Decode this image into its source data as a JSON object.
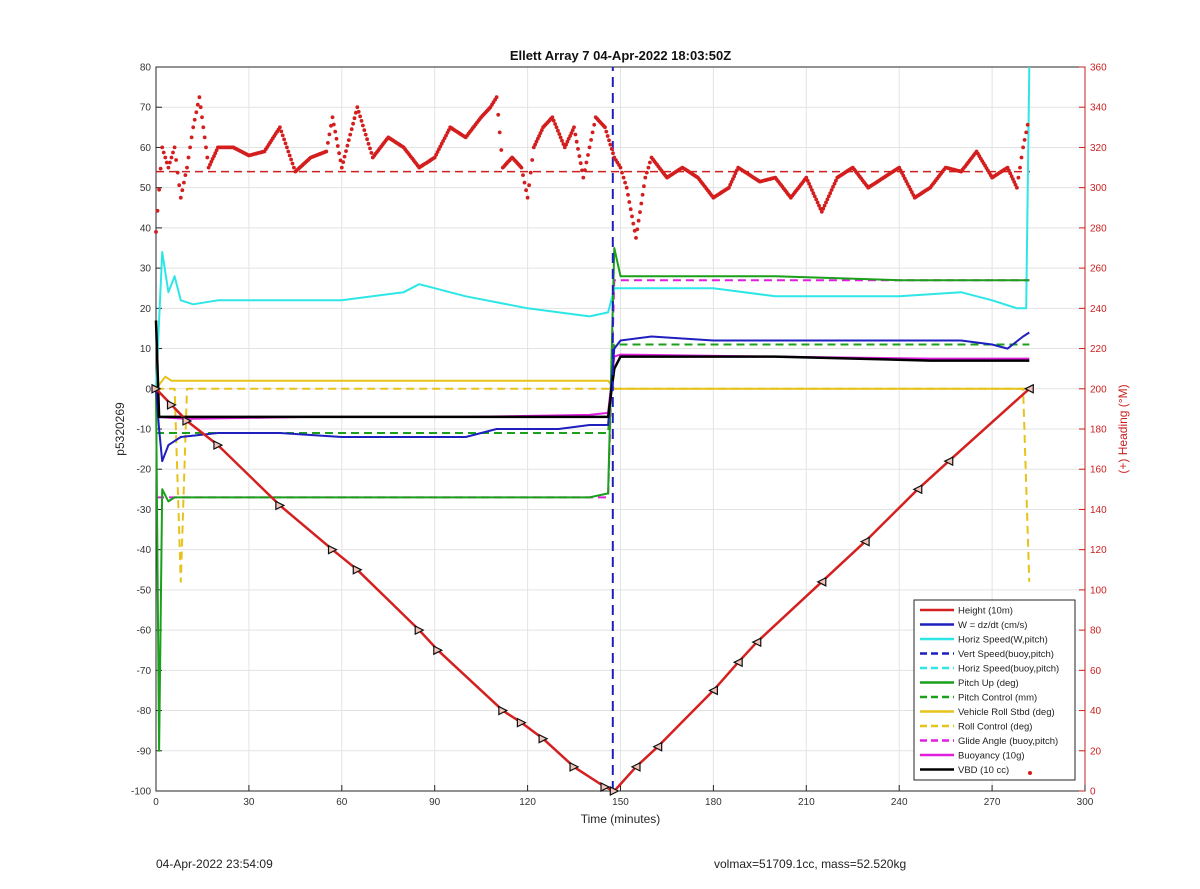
{
  "chart_data": {
    "type": "line",
    "title": "Ellett Array 7 04-Apr-2022 18:03:50Z",
    "xlabel": "Time (minutes)",
    "ylabel": "p5320269",
    "y2label": "(+) Heading (°M)",
    "xlim": [
      0,
      300
    ],
    "ylim": [
      -100,
      80
    ],
    "y2lim": [
      0,
      360
    ],
    "xticks": [
      0,
      30,
      60,
      90,
      120,
      150,
      180,
      210,
      240,
      270,
      300
    ],
    "yticks": [
      -100,
      -90,
      -80,
      -70,
      -60,
      -50,
      -40,
      -30,
      -20,
      -10,
      0,
      10,
      20,
      30,
      40,
      50,
      60,
      70,
      80
    ],
    "y2ticks": [
      0,
      20,
      40,
      60,
      80,
      100,
      120,
      140,
      160,
      180,
      200,
      220,
      240,
      260,
      280,
      300,
      320,
      340,
      360
    ],
    "grid": true,
    "legend_position": "bottom-right",
    "legend": [
      {
        "label": "Height (10m)",
        "color": "#d42020",
        "style": "solid"
      },
      {
        "label": "W = dz/dt (cm/s)",
        "color": "#1f1fbf",
        "style": "solid"
      },
      {
        "label": "Horiz Speed(W,pitch)",
        "color": "#2ee6e6",
        "style": "solid"
      },
      {
        "label": "Vert Speed(buoy,pitch)",
        "color": "#1f1fbf",
        "style": "dashed"
      },
      {
        "label": "Horiz Speed(buoy,pitch)",
        "color": "#2ee6e6",
        "style": "dashed"
      },
      {
        "label": "Pitch Up (deg)",
        "color": "#1aa01a",
        "style": "solid"
      },
      {
        "label": "Pitch Control (mm)",
        "color": "#1aa01a",
        "style": "dashed"
      },
      {
        "label": "Vehicle Roll Stbd (deg)",
        "color": "#e6c21a",
        "style": "solid"
      },
      {
        "label": "Roll Control (deg)",
        "color": "#e6c21a",
        "style": "dashed"
      },
      {
        "label": "Glide Angle (buoy,pitch)",
        "color": "#e01ee0",
        "style": "dashed"
      },
      {
        "label": "Buoyancy (10g)",
        "color": "#e01ee0",
        "style": "solid"
      },
      {
        "label": "VBD (10 cc)",
        "color": "#000000",
        "style": "solid"
      }
    ],
    "series": [
      {
        "name": "Height (10m)",
        "x": [
          0,
          5,
          10,
          20,
          40,
          57,
          65,
          85,
          91,
          112,
          118,
          125,
          135,
          145,
          148,
          155,
          162,
          180,
          188,
          194,
          215,
          229,
          246,
          256,
          282
        ],
        "y": [
          0,
          -4,
          -8,
          -14,
          -29,
          -40,
          -45,
          -60,
          -65,
          -80,
          -83,
          -87,
          -94,
          -99,
          -100,
          -94,
          -89,
          -75,
          -68,
          -63,
          -48,
          -38,
          -25,
          -18,
          0
        ]
      },
      {
        "name": "W = dz/dt (cm/s)",
        "x": [
          0,
          1,
          2,
          4,
          8,
          20,
          40,
          60,
          80,
          100,
          110,
          120,
          130,
          140,
          146,
          148,
          150,
          160,
          180,
          200,
          220,
          240,
          260,
          270,
          275,
          280,
          282
        ],
        "y": [
          0,
          -10,
          -18,
          -14,
          -12,
          -11,
          -11,
          -12,
          -12,
          -12,
          -10,
          -10,
          -10,
          -9,
          -9,
          10,
          12,
          13,
          12,
          12,
          12,
          12,
          12,
          11,
          10,
          13,
          14
        ]
      },
      {
        "name": "Horiz Speed(W,pitch)",
        "x": [
          0,
          2,
          4,
          6,
          8,
          12,
          20,
          40,
          60,
          80,
          85,
          100,
          120,
          140,
          146,
          148,
          150,
          160,
          180,
          200,
          220,
          240,
          260,
          270,
          278,
          281,
          282
        ],
        "y": [
          0,
          34,
          24,
          28,
          22,
          21,
          22,
          22,
          22,
          24,
          26,
          23,
          20,
          18,
          19,
          25,
          25,
          25,
          25,
          23,
          23,
          23,
          24,
          22,
          20,
          20,
          80
        ]
      },
      {
        "name": "Vert Speed(buoy,pitch)",
        "x": [
          147.5,
          147.5
        ],
        "y": [
          -100,
          80
        ]
      },
      {
        "name": "Pitch Up (deg)",
        "x": [
          0,
          1,
          2,
          4,
          6,
          8,
          12,
          20,
          60,
          100,
          140,
          146,
          148,
          150,
          160,
          200,
          240,
          280,
          282
        ],
        "y": [
          0,
          -90,
          -25,
          -28,
          -27,
          -27,
          -27,
          -27,
          -27,
          -27,
          -27,
          -26,
          35,
          28,
          28,
          28,
          27,
          27,
          27
        ]
      },
      {
        "name": "Pitch Control (mm)",
        "x": [
          0,
          10,
          50,
          100,
          146,
          148,
          150,
          200,
          250,
          282
        ],
        "y": [
          -11,
          -11,
          -11,
          -11,
          -11,
          11,
          11,
          11,
          11,
          11
        ]
      },
      {
        "name": "Vehicle Roll Stbd (deg)",
        "x": [
          0,
          3,
          5,
          7,
          9,
          20,
          40,
          60,
          80,
          100,
          120,
          140,
          146,
          148,
          160,
          180,
          200,
          220,
          240,
          260,
          280,
          282
        ],
        "y": [
          0,
          3,
          2,
          2,
          2,
          2,
          2,
          2,
          2,
          2,
          2,
          2,
          2,
          0,
          0,
          0,
          0,
          0,
          0,
          0,
          0,
          0
        ]
      },
      {
        "name": "Roll Control (deg)",
        "x": [
          0,
          6,
          8,
          10,
          20,
          60,
          100,
          140,
          146,
          148,
          160,
          200,
          250,
          280,
          282
        ],
        "y": [
          0,
          0,
          -48,
          0,
          0,
          0,
          0,
          0,
          0,
          0,
          0,
          0,
          0,
          0,
          -48
        ]
      },
      {
        "name": "Glide Angle (buoy,pitch)",
        "x": [
          0,
          8,
          50,
          100,
          146,
          148,
          150,
          200,
          250,
          282
        ],
        "y": [
          -27,
          -27,
          -27,
          -27,
          -27,
          27,
          27,
          27,
          27,
          27
        ]
      },
      {
        "name": "Buoyancy (10g)",
        "x": [
          0,
          10,
          50,
          100,
          140,
          146,
          148,
          150,
          200,
          250,
          282
        ],
        "y": [
          -7,
          -7.5,
          -7,
          -7,
          -6.5,
          -6,
          8,
          8.5,
          8,
          7.5,
          7.5
        ]
      },
      {
        "name": "VBD (10 cc)",
        "x": [
          0,
          1,
          10,
          50,
          100,
          146,
          148,
          150,
          200,
          250,
          282
        ],
        "y": [
          17,
          -7,
          -7,
          -7,
          -7,
          -7,
          5,
          8,
          8,
          7,
          7
        ]
      },
      {
        "name": "Heading",
        "axis": "right",
        "x": [
          0,
          2,
          4,
          6,
          8,
          10,
          12,
          14,
          17,
          20,
          25,
          30,
          35,
          40,
          45,
          50,
          55,
          57,
          60,
          65,
          70,
          75,
          80,
          85,
          90,
          95,
          100,
          105,
          108,
          110,
          112,
          115,
          118,
          120,
          122,
          125,
          128,
          132,
          135,
          138,
          140,
          142,
          145,
          148,
          150,
          152,
          155,
          158,
          160,
          165,
          170,
          175,
          180,
          185,
          188,
          190,
          195,
          200,
          205,
          210,
          215,
          220,
          225,
          230,
          235,
          240,
          245,
          250,
          255,
          260,
          265,
          270,
          275,
          278,
          280,
          282
        ],
        "y": [
          278,
          320,
          310,
          320,
          295,
          310,
          330,
          345,
          310,
          320,
          320,
          316,
          318,
          330,
          308,
          315,
          318,
          335,
          310,
          340,
          315,
          325,
          320,
          310,
          315,
          330,
          325,
          335,
          340,
          345,
          310,
          315,
          310,
          295,
          320,
          330,
          335,
          320,
          330,
          305,
          320,
          335,
          330,
          315,
          310,
          300,
          275,
          305,
          315,
          305,
          310,
          305,
          295,
          300,
          310,
          308,
          303,
          305,
          295,
          305,
          288,
          305,
          310,
          300,
          305,
          310,
          295,
          300,
          310,
          308,
          318,
          305,
          310,
          300,
          320,
          335
        ]
      }
    ],
    "annotations": {
      "heading_reference_deg": 308,
      "markers_note": "triangle markers along Height path"
    }
  },
  "footer": {
    "timestamp": "04-Apr-2022 23:54:09",
    "info": "volmax=51709.1cc, mass=52.520kg"
  }
}
